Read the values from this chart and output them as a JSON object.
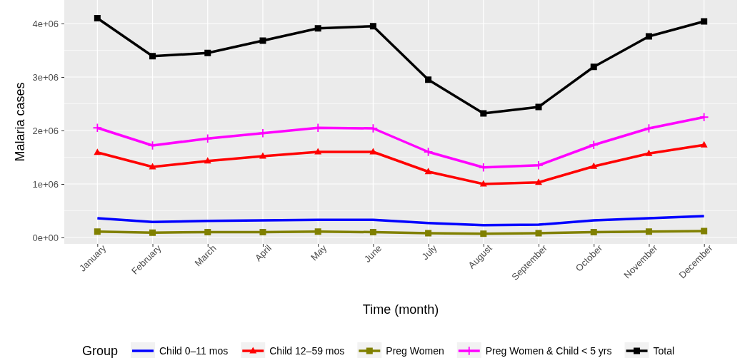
{
  "chart_data": {
    "type": "line",
    "xlabel": "Time (month)",
    "ylabel": "Malaria cases",
    "legend_title": "Group",
    "legend": "bottom",
    "grid": true,
    "categories": [
      "January",
      "February",
      "March",
      "April",
      "May",
      "June",
      "July",
      "August",
      "September",
      "October",
      "November",
      "December"
    ],
    "ylim": [
      -120000,
      4440000
    ],
    "yticks": [
      {
        "value": 0,
        "label": "0e+00"
      },
      {
        "value": 1000000,
        "label": "1e+06"
      },
      {
        "value": 2000000,
        "label": "2e+06"
      },
      {
        "value": 3000000,
        "label": "3e+06"
      },
      {
        "value": 4000000,
        "label": "4e+06"
      }
    ],
    "series": [
      {
        "name": "Child 0–11 mos",
        "color": "#0000ff",
        "marker": "none",
        "values": [
          360000,
          290000,
          310000,
          320000,
          330000,
          330000,
          270000,
          230000,
          240000,
          320000,
          360000,
          400000
        ]
      },
      {
        "name": "Child 12–59 mos",
        "color": "#ff0000",
        "marker": "triangle",
        "values": [
          1590000,
          1320000,
          1430000,
          1520000,
          1600000,
          1600000,
          1230000,
          1000000,
          1030000,
          1330000,
          1570000,
          1730000
        ]
      },
      {
        "name": "Preg Women",
        "color": "#808000",
        "marker": "square",
        "values": [
          110000,
          90000,
          100000,
          100000,
          110000,
          100000,
          80000,
          70000,
          80000,
          100000,
          110000,
          120000
        ]
      },
      {
        "name": "Preg Women & Child < 5 yrs",
        "color": "#ff00ff",
        "marker": "cross",
        "values": [
          2050000,
          1720000,
          1850000,
          1950000,
          2050000,
          2040000,
          1600000,
          1310000,
          1350000,
          1730000,
          2040000,
          2250000
        ]
      },
      {
        "name": "Total",
        "color": "#000000",
        "marker": "square",
        "values": [
          4100000,
          3390000,
          3450000,
          3680000,
          3910000,
          3950000,
          2950000,
          2320000,
          2440000,
          3190000,
          3760000,
          4040000
        ]
      }
    ]
  }
}
